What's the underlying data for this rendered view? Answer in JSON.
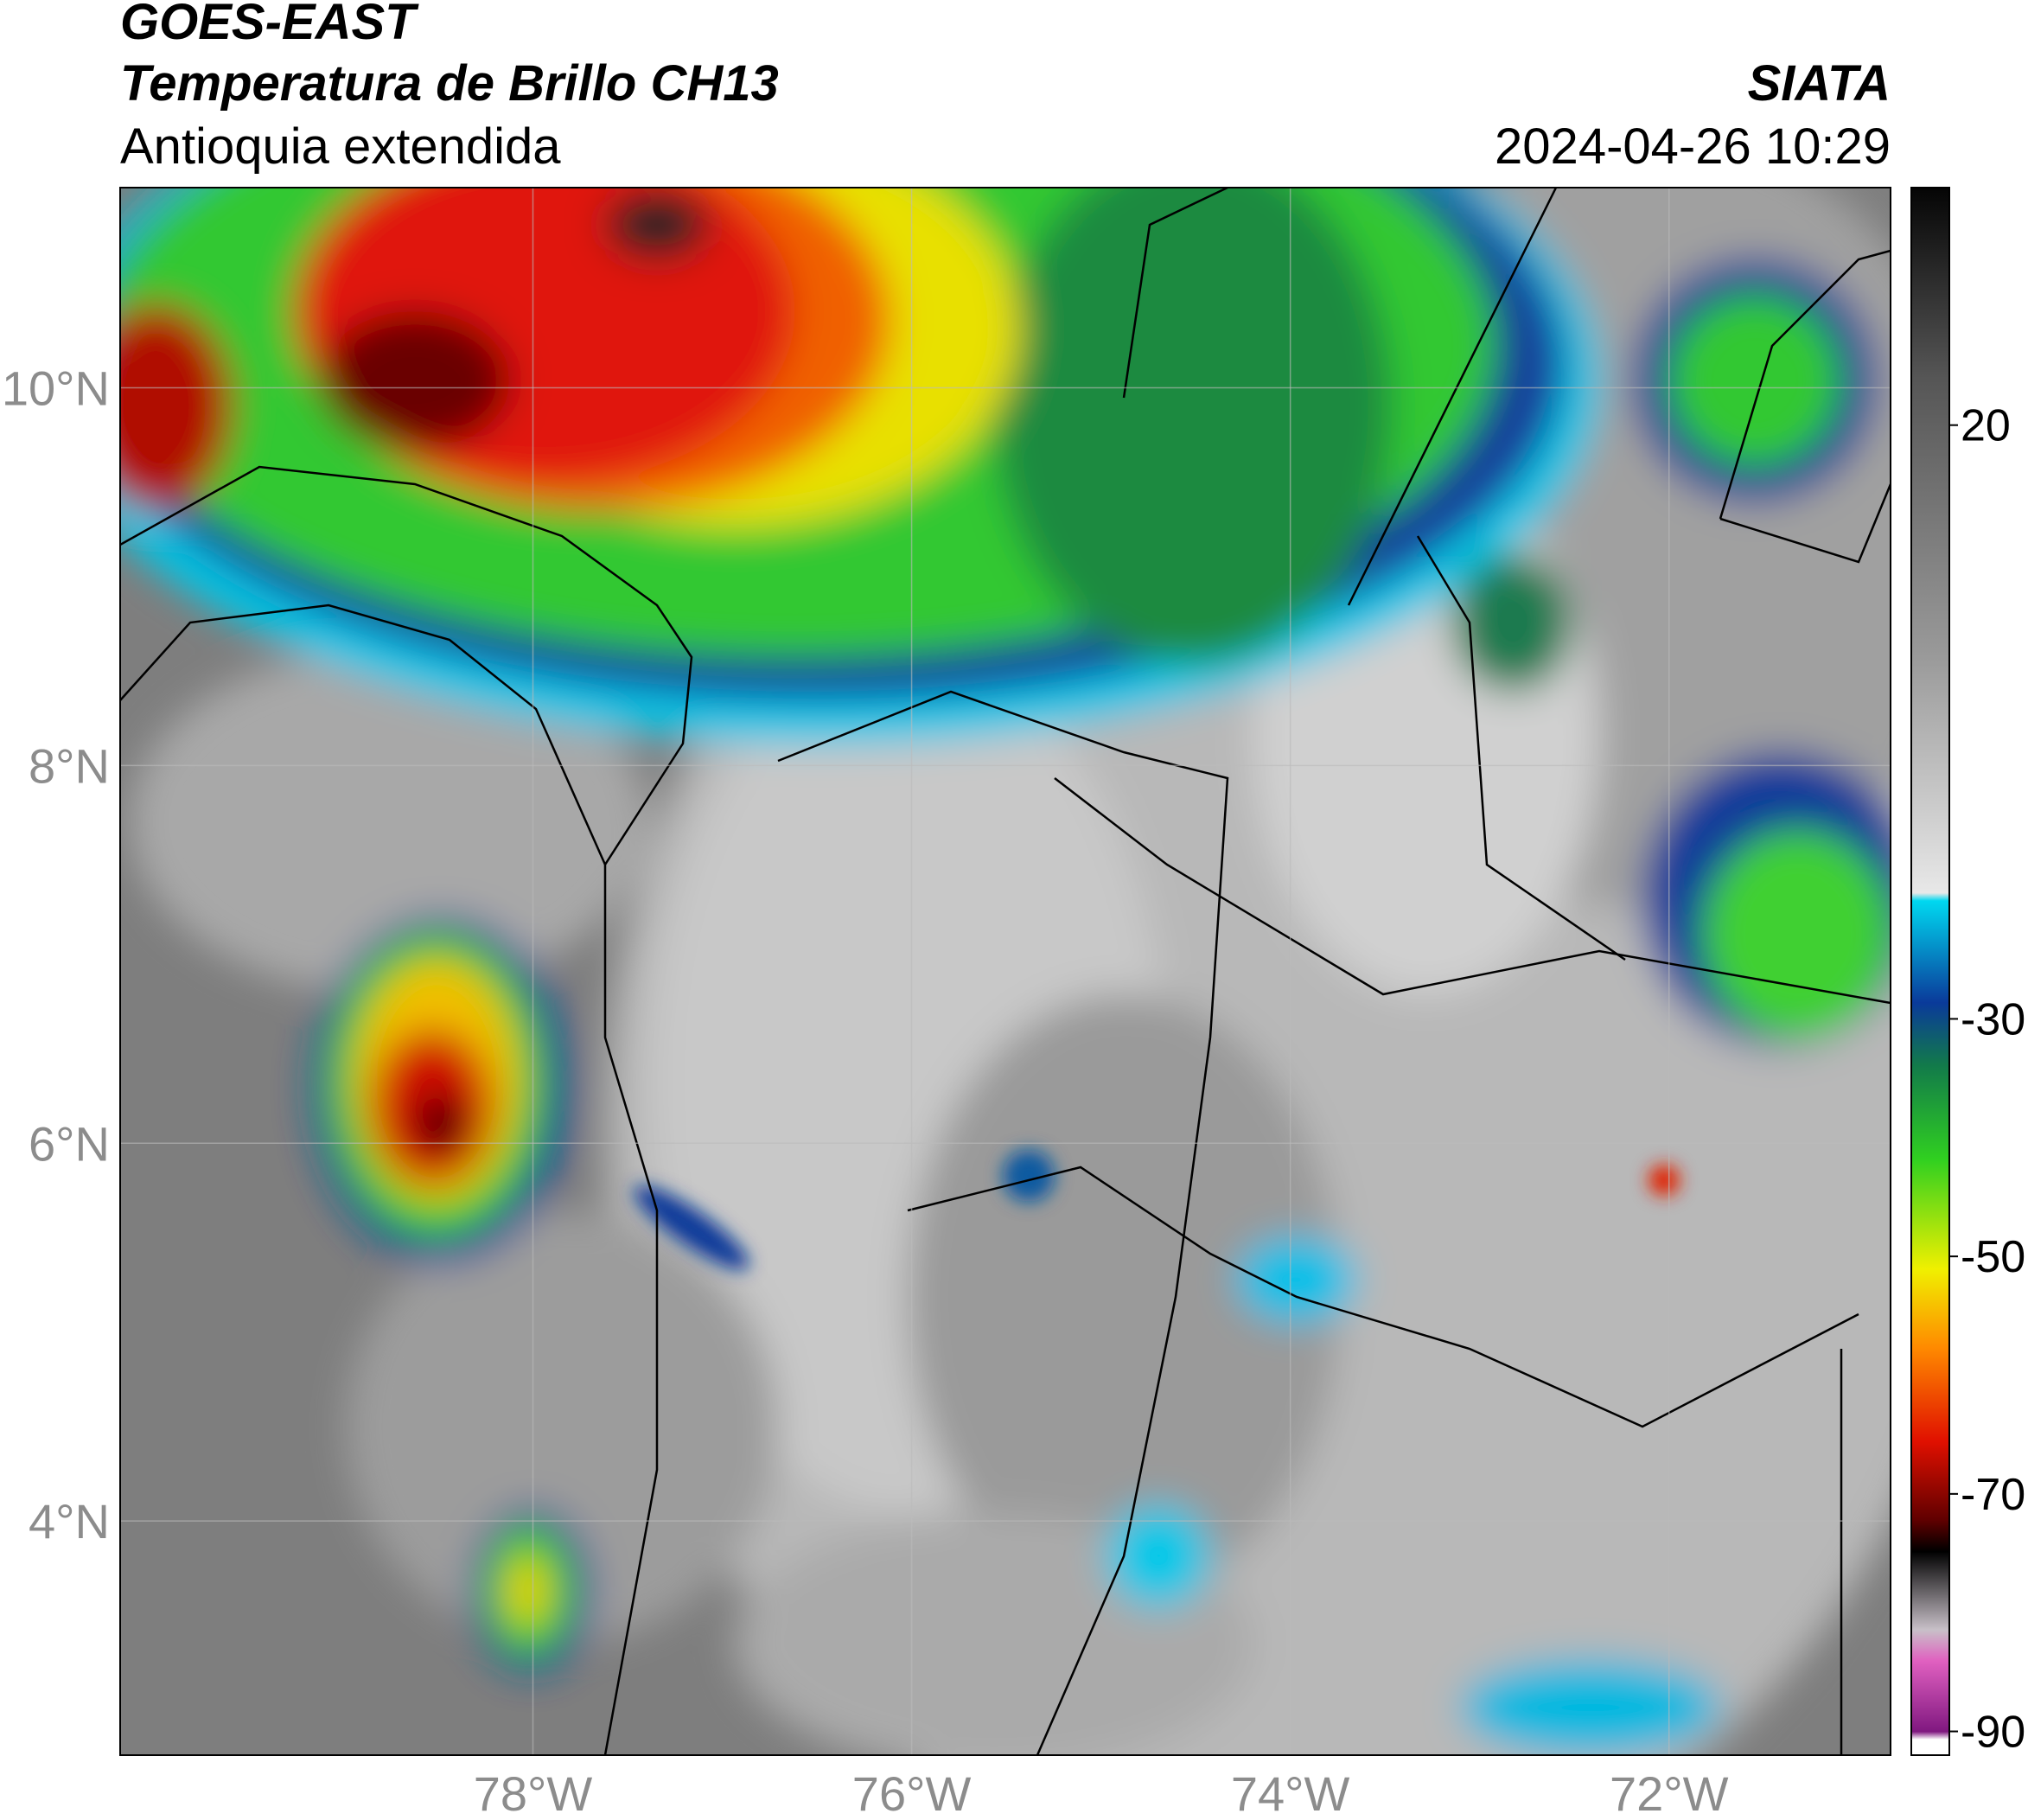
{
  "header": {
    "title_line1": "GOES-EAST",
    "title_line2": "Temperatura de Brillo CH13",
    "subtitle": "Antioquia extendida",
    "source": "SIATA",
    "datetime": "2024-04-26 10:29"
  },
  "map": {
    "lat_range": [
      2.76,
      11.06
    ],
    "lon_range": [
      -80.18,
      -70.83
    ],
    "lat_ticks": [
      {
        "value": 10,
        "label": "10°N"
      },
      {
        "value": 8,
        "label": "8°N"
      },
      {
        "value": 6,
        "label": "6°N"
      },
      {
        "value": 4,
        "label": "4°N"
      }
    ],
    "lon_ticks": [
      {
        "value": -78,
        "label": "78°W"
      },
      {
        "value": -76,
        "label": "76°W"
      },
      {
        "value": -74,
        "label": "74°W"
      },
      {
        "value": -72,
        "label": "72°W"
      }
    ]
  },
  "colorbar": {
    "range": [
      -92,
      40
    ],
    "ticks": [
      20,
      -30,
      -50,
      -70,
      -90
    ]
  }
}
